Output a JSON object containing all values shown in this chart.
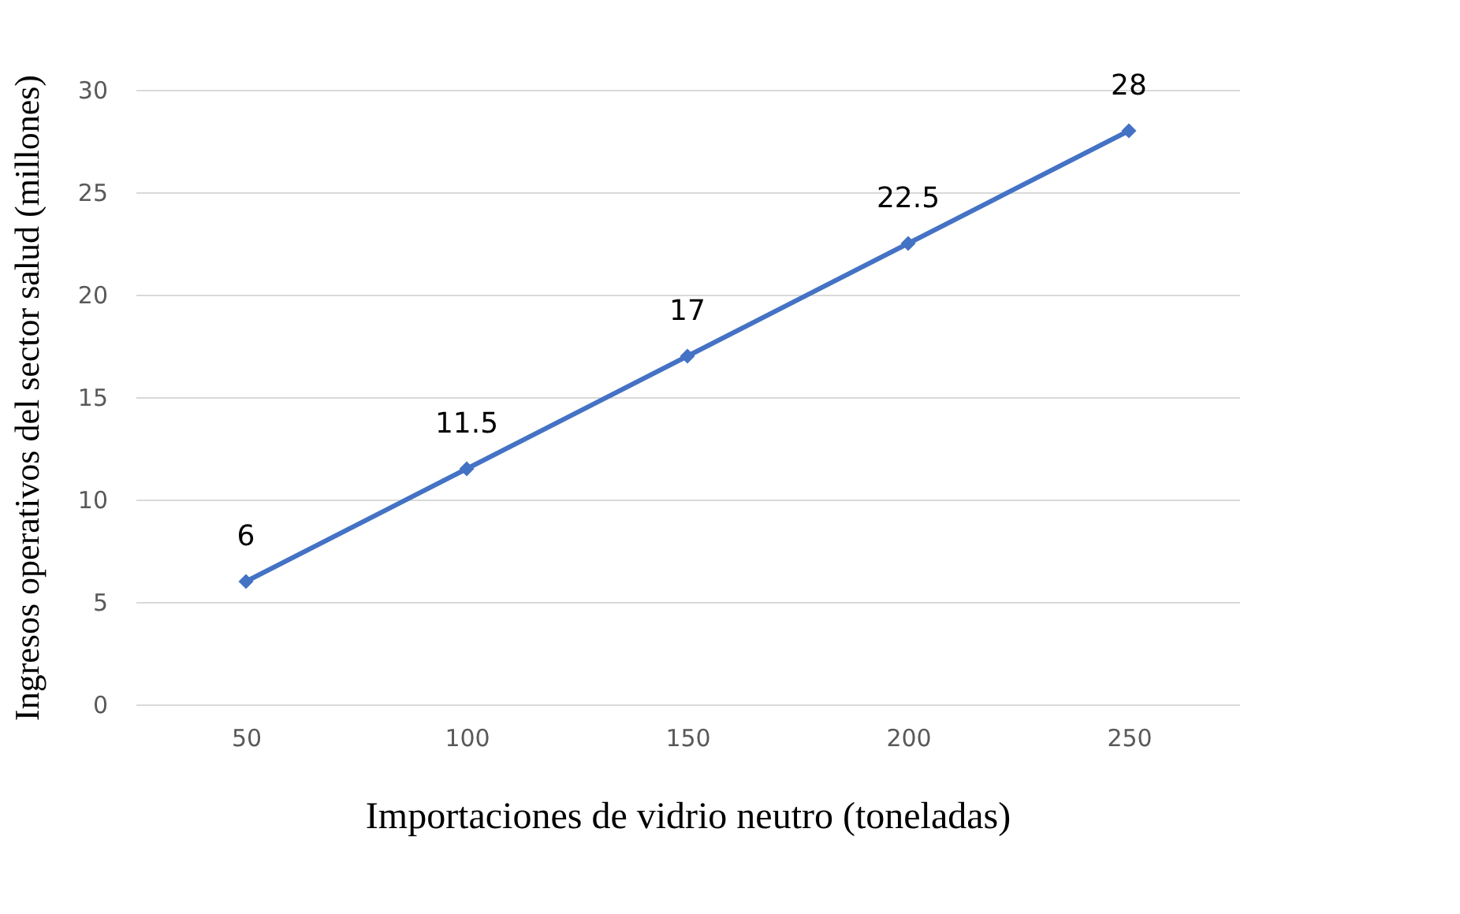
{
  "chart_data": {
    "type": "line",
    "xlabel": "Importaciones de vidrio neutro (toneladas)",
    "ylabel": "Ingresos operativos del sector salud (millones)",
    "categories": [
      "50",
      "100",
      "150",
      "200",
      "250"
    ],
    "series": [
      {
        "color": "#4472c4",
        "values": [
          6,
          11.5,
          17,
          22.5,
          28
        ]
      }
    ],
    "ylim": [
      0,
      30
    ],
    "yticks": [
      0,
      5,
      10,
      15,
      20,
      25,
      30
    ],
    "grid": "y",
    "marker": "diamond",
    "line_style": "solid",
    "data_labels": true
  }
}
